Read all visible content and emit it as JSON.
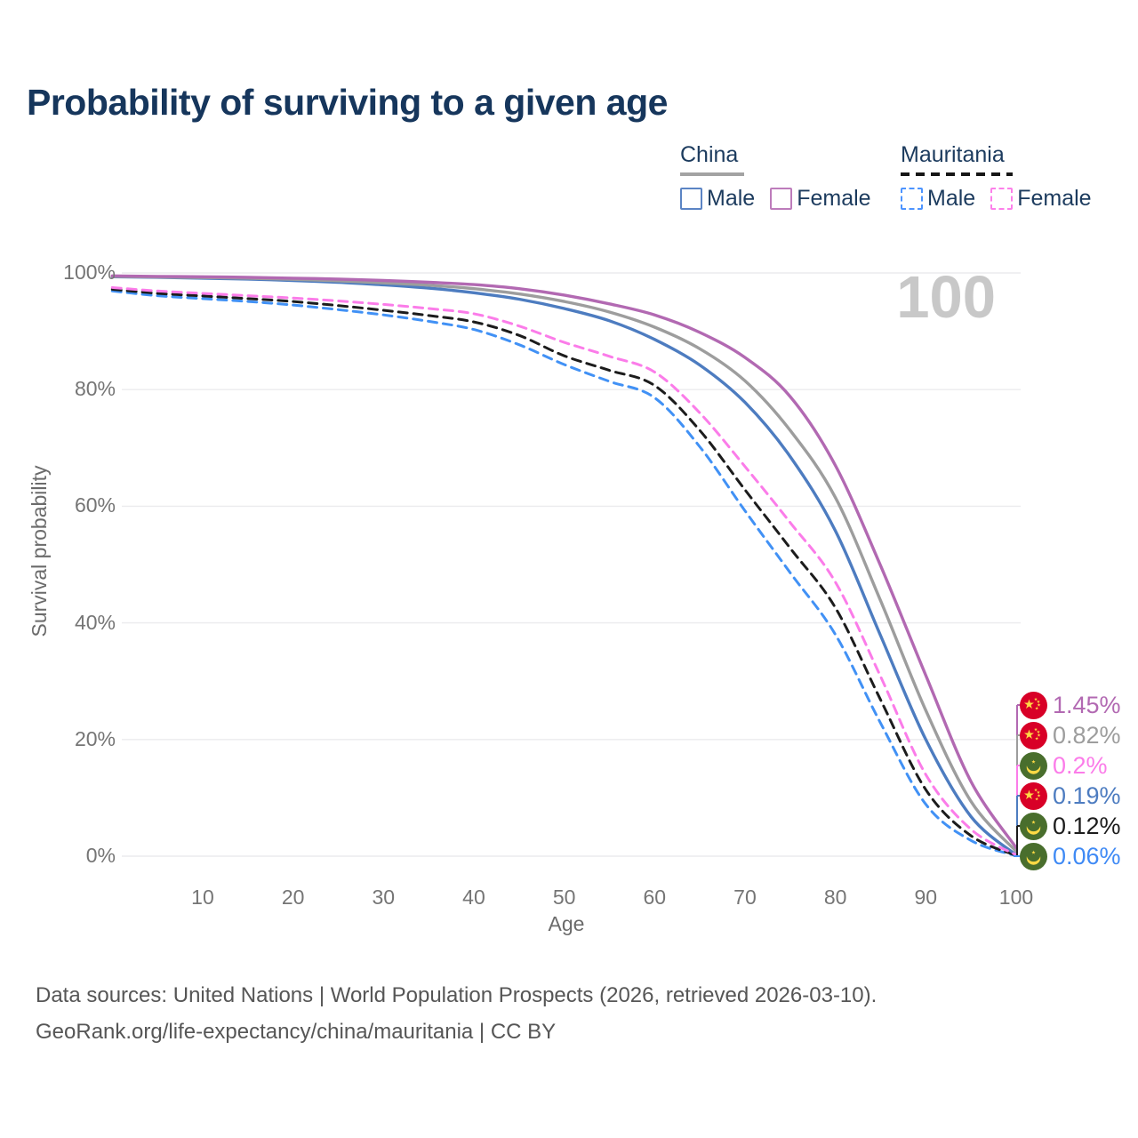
{
  "title": "Probability of surviving to a given age",
  "watermark": "100",
  "legend": {
    "groups": [
      {
        "name": "China",
        "line_style": "solid",
        "underline_color": "#a3a3a3",
        "items": [
          {
            "label": "Male",
            "color": "#5b84c4",
            "dashed": false
          },
          {
            "label": "Female",
            "color": "#bd7cbb",
            "dashed": false
          }
        ]
      },
      {
        "name": "Mauritania",
        "line_style": "dashed",
        "underline_color": "#161616",
        "items": [
          {
            "label": "Male",
            "color": "#4d94ff",
            "dashed": true
          },
          {
            "label": "Female",
            "color": "#fc80ea",
            "dashed": true
          }
        ]
      }
    ]
  },
  "chart_data": {
    "type": "line",
    "x_label": "Age",
    "y_label": "Survival probability",
    "xlim": [
      0,
      100
    ],
    "ylim": [
      0,
      100
    ],
    "grid": "horizontal",
    "x_ticks": [
      "10",
      "20",
      "30",
      "40",
      "50",
      "60",
      "70",
      "80",
      "90",
      "100"
    ],
    "x_tick_values": [
      10,
      20,
      30,
      40,
      50,
      60,
      70,
      80,
      90,
      100
    ],
    "y_ticks": [
      "0%",
      "20%",
      "40%",
      "60%",
      "80%",
      "100%"
    ],
    "y_tick_values": [
      0,
      20,
      40,
      60,
      80,
      100
    ],
    "ages": [
      0,
      5,
      10,
      15,
      20,
      25,
      30,
      35,
      40,
      45,
      50,
      55,
      60,
      65,
      70,
      75,
      80,
      85,
      90,
      95,
      100
    ],
    "series": [
      {
        "name": "China Female",
        "flag": "china",
        "dashed": false,
        "line_color": "#b269b2",
        "label_color": "#b269b2",
        "end_label": "1.45%",
        "values": [
          99.5,
          99.4,
          99.35,
          99.25,
          99.1,
          98.95,
          98.7,
          98.4,
          98.0,
          97.3,
          96.2,
          94.7,
          92.8,
          89.8,
          85.5,
          78.8,
          67.0,
          49.8,
          31.0,
          12.8,
          1.45
        ]
      },
      {
        "name": "China Both sexes",
        "flag": "china",
        "dashed": false,
        "line_color": "#9d9d9d",
        "label_color": "#9d9d9d",
        "end_label": "0.82%",
        "values": [
          99.4,
          99.3,
          99.2,
          99.1,
          98.9,
          98.65,
          98.3,
          97.9,
          97.3,
          96.4,
          95.1,
          93.3,
          90.7,
          87.0,
          81.5,
          73.0,
          61.5,
          43.8,
          25.0,
          9.4,
          0.82
        ]
      },
      {
        "name": "Mauritania Female",
        "flag": "mauritania",
        "dashed": true,
        "line_color": "#fb7ce9",
        "label_color": "#fb7ce9",
        "end_label": "0.2%",
        "values": [
          97.5,
          96.9,
          96.5,
          96.1,
          95.7,
          95.2,
          94.6,
          93.9,
          93.0,
          90.9,
          88.1,
          85.7,
          83.0,
          76.0,
          66.8,
          57.2,
          47.0,
          30.8,
          14.0,
          4.6,
          0.2
        ]
      },
      {
        "name": "China Male",
        "flag": "china",
        "dashed": false,
        "line_color": "#4d7cc0",
        "label_color": "#4d7cc0",
        "end_label": "0.19%",
        "values": [
          99.35,
          99.25,
          99.1,
          98.95,
          98.7,
          98.4,
          97.95,
          97.4,
          96.6,
          95.5,
          93.9,
          91.8,
          88.6,
          84.2,
          77.8,
          68.5,
          55.8,
          37.8,
          20.0,
          6.8,
          0.19
        ]
      },
      {
        "name": "Mauritania Both sexes",
        "flag": "mauritania",
        "dashed": true,
        "line_color": "#1c1c1c",
        "label_color": "#1c1c1c",
        "end_label": "0.12%",
        "values": [
          97.2,
          96.5,
          96.05,
          95.6,
          95.1,
          94.4,
          93.6,
          92.7,
          91.6,
          89.3,
          85.8,
          83.3,
          80.7,
          73.0,
          62.8,
          52.8,
          42.6,
          26.8,
          11.4,
          3.5,
          0.12
        ]
      },
      {
        "name": "Mauritania Male",
        "flag": "mauritania",
        "dashed": true,
        "line_color": "#4191f5",
        "label_color": "#3f8af5",
        "end_label": "0.06%",
        "values": [
          96.9,
          96.1,
          95.6,
          95.1,
          94.5,
          93.7,
          92.8,
          91.7,
          90.3,
          87.7,
          84.3,
          81.4,
          78.6,
          70.2,
          59.2,
          48.6,
          38.0,
          22.8,
          8.9,
          2.7,
          0.06
        ]
      }
    ]
  },
  "flags": {
    "china": {
      "background": "#d80027",
      "emblem": "#ffda44"
    },
    "mauritania": {
      "background": "#496e2d",
      "emblem": "#ffda44"
    }
  },
  "colors": {
    "title": "#16365c",
    "legend_text": "#1c3b5e",
    "tick_text": "#757575",
    "grid": "#ebebee",
    "watermark": "#c8c8c8",
    "source_text": "#565656"
  },
  "source": {
    "line1": "Data sources: United Nations | World Population Prospects (2026, retrieved 2026-03-10).",
    "line2": "GeoRank.org/life-expectancy/china/mauritania | CC BY"
  }
}
